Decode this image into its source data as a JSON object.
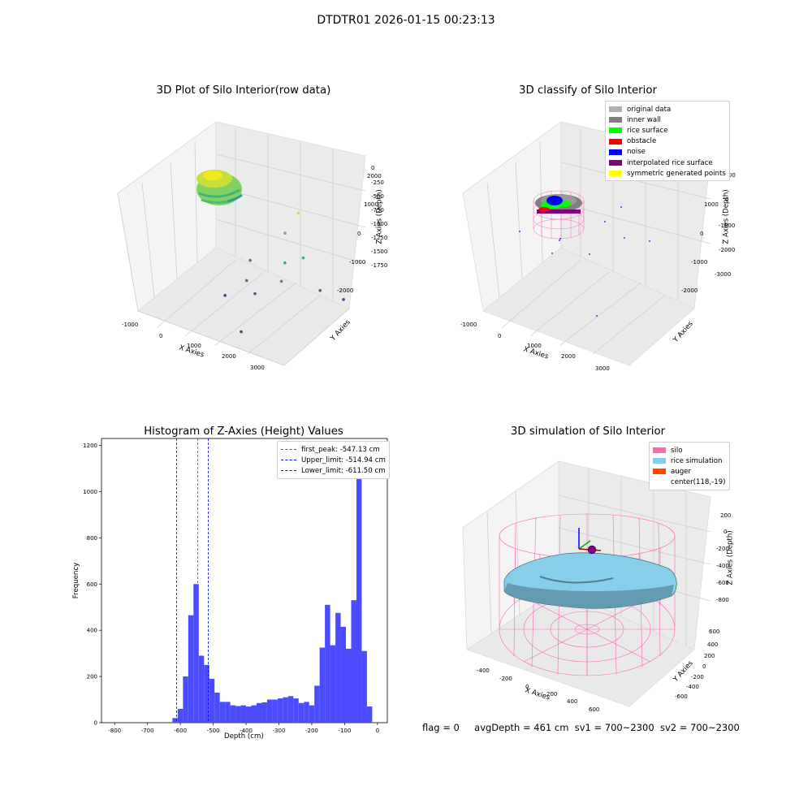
{
  "suptitle": "DTDTR01 2026-01-15 00:23:13",
  "status": {
    "flag": "flag = 0",
    "avg_depth": "avgDepth = 461 cm",
    "sv1": "sv1 = 700~2300",
    "sv2": "sv2 = 700~2300"
  },
  "colors": {
    "histogram_bar": "#4b4bff",
    "first_peak": "#d62728",
    "limit_line": "#0000ff",
    "silo": "#ff69b4",
    "rice_simulation": "#87ceeb",
    "auger": "#ff4500"
  },
  "chart_data": [
    {
      "type": "scatter",
      "projection": "3d",
      "title": "3D Plot of Silo Interior(row data)",
      "xlabel": "X Axies",
      "ylabel": "Y Axies",
      "zlabel": "Z Axies (Depth)",
      "x_ticks": [
        "-1000",
        "0",
        "1000",
        "2000",
        "3000"
      ],
      "y_ticks": [
        "-2000",
        "-1000",
        "0",
        "1000",
        "2000"
      ],
      "z_ticks": [
        "0",
        "-250",
        "-500",
        "-750",
        "-1000",
        "-1250",
        "-1500",
        "-1750"
      ],
      "grid": true,
      "colormap": "viridis (by depth)",
      "points": [
        {
          "x": 2400,
          "y": 0,
          "z": -150
        },
        {
          "x": 2100,
          "y": -200,
          "z": -1000
        },
        {
          "x": 2500,
          "y": 100,
          "z": -900
        },
        {
          "x": 1800,
          "y": 400,
          "z": -700
        },
        {
          "x": 2200,
          "y": -600,
          "z": -1200
        },
        {
          "x": 1000,
          "y": -300,
          "z": -1500
        },
        {
          "x": 1200,
          "y": -200,
          "z": -1700
        },
        {
          "x": 700,
          "y": 500,
          "z": -1400
        },
        {
          "x": 3000,
          "y": 1500,
          "z": -1800
        },
        {
          "x": 2600,
          "y": 900,
          "z": -1600
        },
        {
          "x": 400,
          "y": -400,
          "z": -1850
        },
        {
          "x": 1600,
          "y": -1800,
          "z": -1900
        }
      ]
    },
    {
      "type": "scatter",
      "projection": "3d",
      "title": "3D classify of Silo Interior",
      "xlabel": "X Axies",
      "ylabel": "Y Axies",
      "zlabel": "Z Axies (Depth)",
      "x_ticks": [
        "-1000",
        "0",
        "1000",
        "2000",
        "3000"
      ],
      "y_ticks": [
        "-2000",
        "-1000",
        "0",
        "1000",
        "2000"
      ],
      "z_ticks": [
        "1000",
        "0",
        "-1000",
        "-2000",
        "-3000"
      ],
      "grid": true,
      "legend_position": "upper right",
      "legend": [
        {
          "label": "original data",
          "color": "#b0b0b0"
        },
        {
          "label": "inner wall",
          "color": "#808080"
        },
        {
          "label": "rice surface",
          "color": "#00ff00"
        },
        {
          "label": "obstacle",
          "color": "#ff0000"
        },
        {
          "label": "noise",
          "color": "#0000ff"
        },
        {
          "label": "interpolated rice surface",
          "color": "#800080"
        },
        {
          "label": "symmetric generated points",
          "color": "#ffff00"
        }
      ]
    },
    {
      "type": "bar",
      "title": "Histogram of Z-Axies (Height) Values",
      "xlabel": "Depth (cm)",
      "ylabel": "Frequency",
      "xlim": [
        -840,
        30
      ],
      "ylim": [
        0,
        1230
      ],
      "x_ticks": [
        -800,
        -700,
        -600,
        -500,
        -400,
        -300,
        -200,
        -100,
        0
      ],
      "y_ticks": [
        0,
        200,
        400,
        600,
        800,
        1000,
        1200
      ],
      "bin_width": 16,
      "bin_starts": [
        -624,
        -608,
        -592,
        -576,
        -560,
        -544,
        -528,
        -512,
        -496,
        -480,
        -464,
        -448,
        -432,
        -416,
        -400,
        -384,
        -368,
        -352,
        -336,
        -320,
        -304,
        -288,
        -272,
        -256,
        -240,
        -224,
        -208,
        -192,
        -176,
        -160,
        -144,
        -128,
        -112,
        -96,
        -80,
        -64,
        -48,
        -32,
        -16
      ],
      "values": [
        20,
        60,
        200,
        465,
        600,
        290,
        250,
        190,
        130,
        90,
        90,
        75,
        72,
        75,
        70,
        75,
        85,
        88,
        100,
        100,
        105,
        110,
        115,
        105,
        85,
        90,
        75,
        160,
        325,
        510,
        335,
        475,
        415,
        320,
        530,
        1150,
        310,
        70,
        0
      ],
      "vlines": [
        {
          "x": -547.13,
          "label": "first_peak: -547.13 cm",
          "color": "#d62728"
        },
        {
          "x": -514.94,
          "label": "Upper_limit: -514.94 cm",
          "color": "#0000ff"
        },
        {
          "x": -611.5,
          "label": "Lower_limit: -611.50 cm",
          "color": "#0000ff"
        }
      ],
      "legend_position": "upper right"
    },
    {
      "type": "area",
      "projection": "3d",
      "title": "3D simulation of Silo Interior",
      "xlabel": "X Axies",
      "ylabel": "Y Axies",
      "zlabel": "Z Axies (Depth)",
      "x_ticks": [
        "-400",
        "-200",
        "0",
        "200",
        "400",
        "600"
      ],
      "y_ticks": [
        "-600",
        "-400",
        "-200",
        "0",
        "200",
        "400",
        "600"
      ],
      "z_ticks": [
        "200",
        "0",
        "-200",
        "-400",
        "-600",
        "-800"
      ],
      "grid": true,
      "legend_position": "upper right",
      "legend": [
        {
          "label": "silo",
          "color": "#ff69b4"
        },
        {
          "label": "rice simulation",
          "color": "#87ceeb"
        },
        {
          "label": "auger",
          "color": "#ff4500"
        },
        {
          "label": "center(118,-19)",
          "color": ""
        }
      ]
    }
  ]
}
